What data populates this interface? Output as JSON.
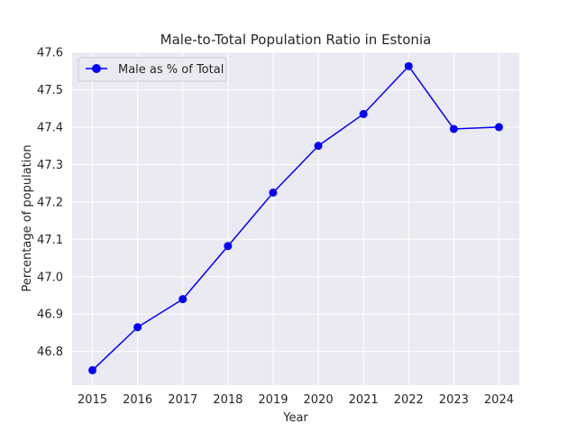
{
  "chart_data": {
    "type": "line",
    "title": "Male-to-Total Population Ratio in Estonia",
    "xlabel": "Year",
    "ylabel": "Percentage of population",
    "x": [
      2015,
      2016,
      2017,
      2018,
      2019,
      2020,
      2021,
      2022,
      2023,
      2024
    ],
    "xticks": [
      "2015",
      "2016",
      "2017",
      "2018",
      "2019",
      "2020",
      "2021",
      "2022",
      "2023",
      "2024"
    ],
    "xlim": [
      2014.55,
      2024.45
    ],
    "ylim": [
      46.71,
      47.6
    ],
    "yticks": [
      46.8,
      46.9,
      47.0,
      47.1,
      47.2,
      47.3,
      47.4,
      47.5,
      47.6
    ],
    "ytick_labels": [
      "46.8",
      "46.9",
      "47.0",
      "47.1",
      "47.2",
      "47.3",
      "47.4",
      "47.5",
      "47.6"
    ],
    "grid": true,
    "legend_position": "upper-left",
    "series": [
      {
        "name": "Male as % of Total",
        "color": "#0000ff",
        "marker": "circle",
        "values": [
          46.75,
          46.865,
          46.94,
          47.082,
          47.225,
          47.35,
          47.435,
          47.563,
          47.395,
          47.4
        ]
      }
    ]
  },
  "colors": {
    "plot_background": "#eaeaf2",
    "grid": "#ffffff",
    "text": "#262626"
  }
}
